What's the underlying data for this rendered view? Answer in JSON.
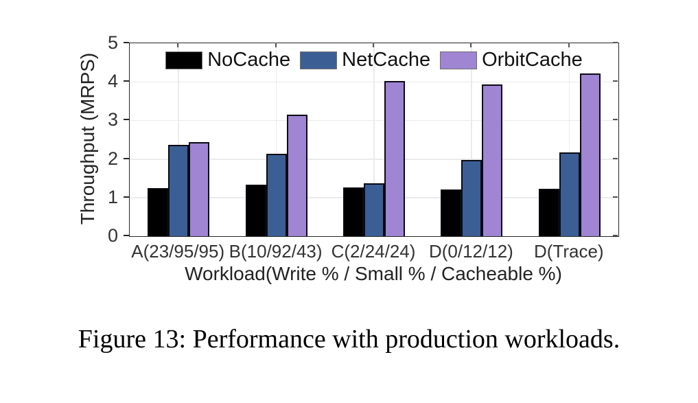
{
  "figure": {
    "caption": "Figure 13: Performance with production workloads."
  },
  "chart_data": {
    "type": "bar",
    "title": "",
    "xlabel": "Workload(Write % / Small % / Cacheable %)",
    "ylabel": "Throughput (MRPS)",
    "ylim": [
      0,
      5
    ],
    "yticks": [
      0,
      1,
      2,
      3,
      4,
      5
    ],
    "grid": true,
    "legend_position": "top-inside-horizontal",
    "categories": [
      "A(23/95/95)",
      "B(10/92/43)",
      "C(2/24/24)",
      "D(0/12/12)",
      "D(Trace)"
    ],
    "series": [
      {
        "name": "NoCache",
        "color": "#000000",
        "values": [
          1.25,
          1.34,
          1.27,
          1.21,
          1.22
        ]
      },
      {
        "name": "NetCache",
        "color": "#3B5F95",
        "values": [
          2.37,
          2.13,
          1.37,
          1.97,
          2.17
        ]
      },
      {
        "name": "OrbitCache",
        "color": "#9F85D2",
        "values": [
          2.44,
          3.15,
          4.03,
          3.93,
          4.22
        ]
      }
    ],
    "bar_edge_color": "#0a0a14",
    "grid_color": "#ebebeb",
    "axis_color": "#262626",
    "tick_label_color": "#333333"
  }
}
